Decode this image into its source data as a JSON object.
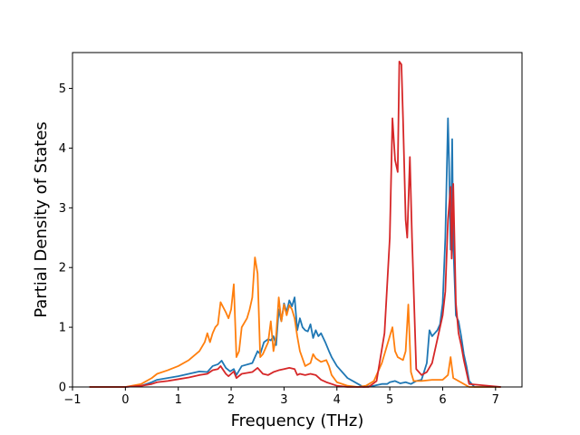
{
  "chart_data": {
    "type": "line",
    "title": "",
    "xlabel": "Frequency (THz)",
    "ylabel": "Partial Density of States",
    "xlim": [
      -1.0,
      7.5
    ],
    "ylim": [
      0,
      5.6
    ],
    "x_ticks": [
      -1,
      0,
      1,
      2,
      3,
      4,
      5,
      6,
      7
    ],
    "x_tick_labels": [
      "−1",
      "0",
      "1",
      "2",
      "3",
      "4",
      "5",
      "6",
      "7"
    ],
    "y_ticks": [
      0,
      1,
      2,
      3,
      4,
      5
    ],
    "y_tick_labels": [
      "0",
      "1",
      "2",
      "3",
      "4",
      "5"
    ],
    "grid": false,
    "legend": "none",
    "series": [
      {
        "color": "#1f77b4",
        "x": [
          -0.68,
          0.0,
          0.3,
          0.5,
          0.6,
          0.8,
          1.0,
          1.2,
          1.4,
          1.55,
          1.65,
          1.75,
          1.82,
          1.9,
          1.98,
          2.05,
          2.1,
          2.2,
          2.4,
          2.5,
          2.55,
          2.62,
          2.7,
          2.75,
          2.8,
          2.85,
          2.9,
          2.95,
          3.0,
          3.05,
          3.1,
          3.15,
          3.2,
          3.25,
          3.3,
          3.35,
          3.4,
          3.45,
          3.5,
          3.55,
          3.6,
          3.65,
          3.7,
          3.78,
          3.85,
          3.9,
          4.0,
          4.2,
          4.4,
          4.5,
          4.7,
          4.85,
          4.95,
          5.0,
          5.1,
          5.2,
          5.3,
          5.4,
          5.5,
          5.6,
          5.7,
          5.75,
          5.8,
          5.85,
          5.9,
          5.95,
          6.0,
          6.05,
          6.1,
          6.12,
          6.15,
          6.18,
          6.2,
          6.25,
          6.3,
          6.35,
          6.4,
          6.45,
          6.5,
          6.6,
          7.1
        ],
        "y": [
          0,
          0,
          0.02,
          0.08,
          0.12,
          0.15,
          0.18,
          0.22,
          0.26,
          0.25,
          0.35,
          0.38,
          0.44,
          0.32,
          0.26,
          0.3,
          0.2,
          0.35,
          0.4,
          0.6,
          0.55,
          0.75,
          0.8,
          0.78,
          0.85,
          0.7,
          1.3,
          1.1,
          1.4,
          1.25,
          1.45,
          1.35,
          1.5,
          0.95,
          1.15,
          1.0,
          0.95,
          0.93,
          1.05,
          0.82,
          0.95,
          0.85,
          0.9,
          0.75,
          0.6,
          0.5,
          0.35,
          0.15,
          0.05,
          0.0,
          0.02,
          0.05,
          0.05,
          0.08,
          0.1,
          0.06,
          0.08,
          0.05,
          0.1,
          0.12,
          0.4,
          0.95,
          0.85,
          0.9,
          0.95,
          1.05,
          1.4,
          2.5,
          4.5,
          3.8,
          2.3,
          4.15,
          2.4,
          1.2,
          1.1,
          0.85,
          0.55,
          0.35,
          0.1,
          0.0,
          0.0
        ]
      },
      {
        "color": "#ff7f0e",
        "x": [
          -0.68,
          0.0,
          0.3,
          0.5,
          0.6,
          0.8,
          1.0,
          1.2,
          1.4,
          1.5,
          1.55,
          1.6,
          1.65,
          1.7,
          1.75,
          1.8,
          1.9,
          1.95,
          2.0,
          2.05,
          2.1,
          2.15,
          2.2,
          2.3,
          2.35,
          2.4,
          2.45,
          2.5,
          2.55,
          2.6,
          2.7,
          2.75,
          2.8,
          2.85,
          2.9,
          2.95,
          3.0,
          3.05,
          3.1,
          3.15,
          3.2,
          3.25,
          3.3,
          3.4,
          3.5,
          3.55,
          3.6,
          3.7,
          3.8,
          3.85,
          3.9,
          4.0,
          4.2,
          4.4,
          4.55,
          4.7,
          4.85,
          4.95,
          5.05,
          5.1,
          5.15,
          5.25,
          5.3,
          5.35,
          5.4,
          5.45,
          5.6,
          5.8,
          6.0,
          6.1,
          6.15,
          6.2,
          6.3,
          6.5,
          7.1
        ],
        "y": [
          0,
          0,
          0.05,
          0.15,
          0.22,
          0.28,
          0.35,
          0.45,
          0.6,
          0.75,
          0.9,
          0.75,
          0.9,
          1.0,
          1.05,
          1.42,
          1.25,
          1.15,
          1.3,
          1.72,
          0.5,
          0.6,
          1.0,
          1.15,
          1.3,
          1.5,
          2.17,
          1.9,
          0.5,
          0.55,
          0.75,
          1.1,
          0.6,
          0.85,
          1.5,
          1.1,
          1.38,
          1.2,
          1.37,
          1.3,
          1.15,
          0.85,
          0.6,
          0.35,
          0.4,
          0.55,
          0.48,
          0.42,
          0.45,
          0.35,
          0.2,
          0.08,
          0.02,
          0.0,
          0.02,
          0.1,
          0.4,
          0.7,
          1.0,
          0.6,
          0.5,
          0.45,
          0.6,
          1.38,
          0.25,
          0.1,
          0.1,
          0.12,
          0.12,
          0.2,
          0.5,
          0.15,
          0.1,
          0.0,
          0.0
        ]
      },
      {
        "color": "#d62728",
        "x": [
          -0.68,
          0.0,
          0.3,
          0.5,
          0.6,
          0.8,
          1.0,
          1.2,
          1.4,
          1.55,
          1.65,
          1.75,
          1.8,
          1.9,
          1.95,
          2.0,
          2.05,
          2.1,
          2.2,
          2.4,
          2.5,
          2.6,
          2.7,
          2.8,
          2.9,
          3.0,
          3.1,
          3.2,
          3.25,
          3.3,
          3.4,
          3.5,
          3.6,
          3.7,
          3.8,
          3.9,
          4.0,
          4.2,
          4.4,
          4.6,
          4.75,
          4.9,
          5.0,
          5.05,
          5.1,
          5.15,
          5.18,
          5.22,
          5.25,
          5.3,
          5.33,
          5.38,
          5.42,
          5.5,
          5.6,
          5.7,
          5.8,
          5.9,
          6.0,
          6.05,
          6.1,
          6.15,
          6.17,
          6.2,
          6.25,
          6.3,
          6.35,
          6.4,
          6.5,
          7.1
        ],
        "y": [
          0,
          0,
          0.02,
          0.05,
          0.08,
          0.1,
          0.13,
          0.16,
          0.2,
          0.22,
          0.28,
          0.3,
          0.35,
          0.22,
          0.18,
          0.22,
          0.26,
          0.15,
          0.22,
          0.25,
          0.32,
          0.22,
          0.2,
          0.25,
          0.28,
          0.3,
          0.32,
          0.3,
          0.2,
          0.22,
          0.2,
          0.22,
          0.2,
          0.12,
          0.08,
          0.05,
          0.02,
          0.0,
          0.0,
          0.0,
          0.1,
          0.9,
          2.5,
          4.5,
          3.8,
          3.6,
          5.45,
          5.4,
          4.5,
          2.8,
          2.5,
          3.85,
          2.5,
          0.3,
          0.2,
          0.25,
          0.4,
          0.8,
          1.2,
          1.6,
          2.8,
          3.35,
          2.15,
          3.4,
          1.4,
          0.9,
          0.7,
          0.45,
          0.05,
          0.0
        ]
      }
    ]
  }
}
